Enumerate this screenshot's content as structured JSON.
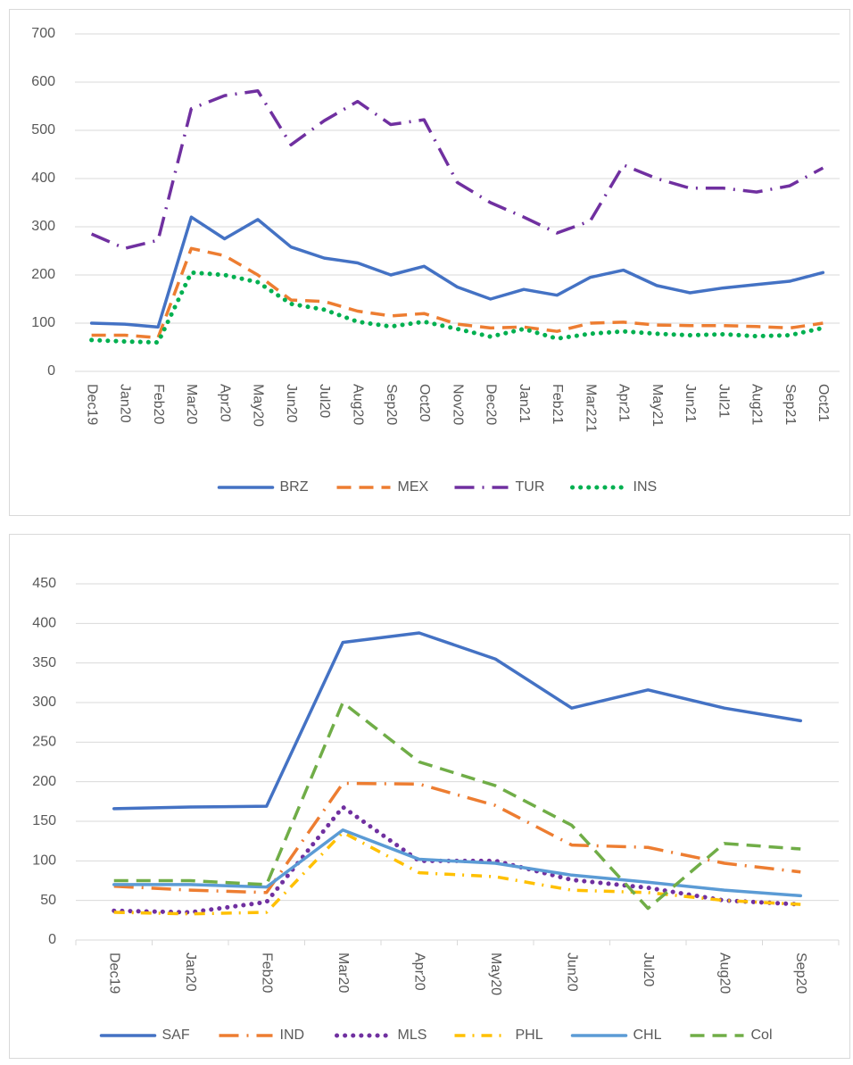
{
  "chart_data": [
    {
      "type": "line",
      "categories": [
        "Dec19",
        "Jan20",
        "Feb20",
        "Mar20",
        "Apr20",
        "May20",
        "Jun20",
        "Jul20",
        "Aug20",
        "Sep20",
        "Oct20",
        "Nov20",
        "Dec20",
        "Jan21",
        "Feb21",
        "Mar221",
        "Apr21",
        "May21",
        "Jun21",
        "Jul21",
        "Aug21",
        "Sep21",
        "Oct21"
      ],
      "series": [
        {
          "name": "BRZ",
          "color": "#4472c4",
          "style": "solid",
          "values": [
            100,
            98,
            92,
            320,
            275,
            315,
            258,
            235,
            225,
            200,
            218,
            175,
            150,
            170,
            158,
            195,
            210,
            178,
            163,
            173,
            180,
            187,
            205
          ]
        },
        {
          "name": "MEX",
          "color": "#ed7d31",
          "style": "dash",
          "values": [
            75,
            75,
            70,
            255,
            240,
            200,
            148,
            145,
            125,
            115,
            120,
            98,
            90,
            92,
            83,
            100,
            102,
            96,
            95,
            95,
            93,
            90,
            100
          ]
        },
        {
          "name": "TUR",
          "color": "#7030a0",
          "style": "longDashDot",
          "values": [
            285,
            255,
            272,
            545,
            572,
            582,
            470,
            520,
            560,
            512,
            522,
            392,
            350,
            320,
            287,
            312,
            428,
            400,
            380,
            380,
            372,
            385,
            422
          ]
        },
        {
          "name": "INS",
          "color": "#00b050",
          "style": "dot",
          "values": [
            65,
            62,
            60,
            205,
            200,
            185,
            140,
            128,
            103,
            93,
            103,
            88,
            72,
            88,
            68,
            78,
            83,
            78,
            75,
            77,
            73,
            75,
            90
          ]
        }
      ],
      "ylim": [
        0,
        700
      ],
      "yticks": [
        0,
        100,
        200,
        300,
        400,
        500,
        600,
        700
      ],
      "grid": true,
      "legend": "bottom"
    },
    {
      "type": "line",
      "categories": [
        "Dec19",
        "Jan20",
        "Feb20",
        "Mar20",
        "Apr20",
        "May20",
        "Jun20",
        "Jul20",
        "Aug20",
        "Sep20"
      ],
      "series": [
        {
          "name": "SAF",
          "color": "#4472c4",
          "style": "solid",
          "values": [
            166,
            168,
            169,
            376,
            388,
            355,
            293,
            316,
            293,
            277
          ]
        },
        {
          "name": "IND",
          "color": "#ed7d31",
          "style": "longDashDot",
          "values": [
            68,
            63,
            60,
            198,
            197,
            170,
            120,
            117,
            97,
            86
          ]
        },
        {
          "name": "MLS",
          "color": "#7030a0",
          "style": "dot",
          "values": [
            37,
            35,
            48,
            168,
            100,
            100,
            76,
            66,
            50,
            45
          ]
        },
        {
          "name": "PHL",
          "color": "#ffc000",
          "style": "dashDot",
          "values": [
            35,
            33,
            35,
            136,
            85,
            80,
            63,
            60,
            50,
            45
          ]
        },
        {
          "name": "CHL",
          "color": "#5b9bd5",
          "style": "solid",
          "values": [
            70,
            70,
            67,
            139,
            102,
            97,
            82,
            73,
            63,
            56
          ]
        },
        {
          "name": "Col",
          "color": "#70ad47",
          "style": "dash",
          "values": [
            75,
            75,
            70,
            300,
            225,
            195,
            145,
            40,
            122,
            115
          ]
        }
      ],
      "ylim": [
        0,
        450
      ],
      "yticks": [
        0,
        50,
        100,
        150,
        200,
        250,
        300,
        350,
        400,
        450
      ],
      "grid": true,
      "legend": "bottom"
    }
  ]
}
